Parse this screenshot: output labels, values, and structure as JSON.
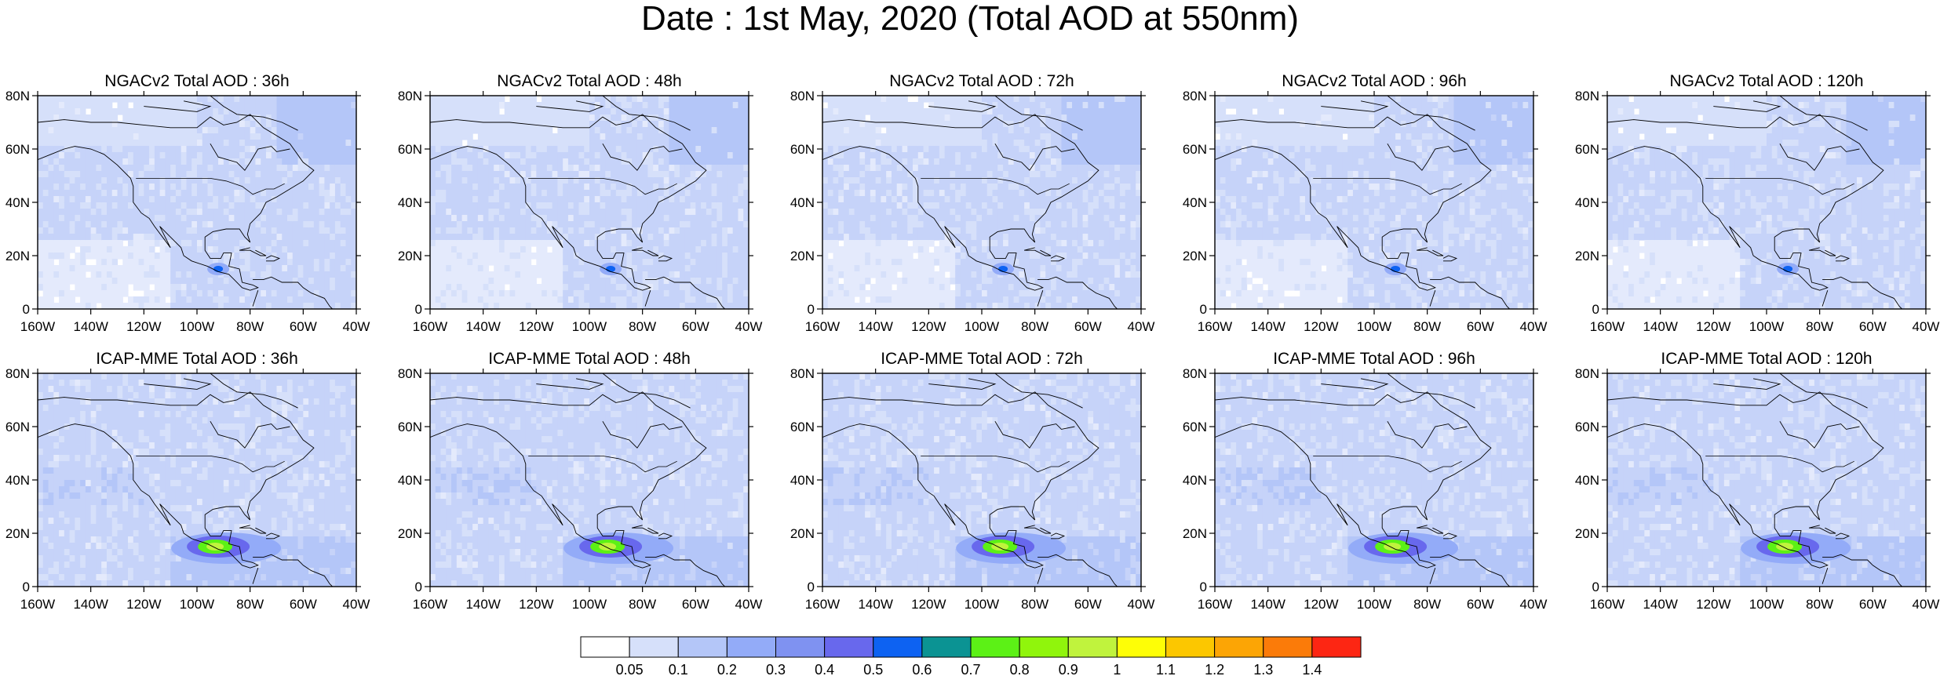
{
  "title": "Date : 1st May, 2020 (Total AOD at 550nm)",
  "lon_ticks": [
    "160W",
    "140W",
    "120W",
    "100W",
    "80W",
    "60W",
    "40W"
  ],
  "lat_ticks": [
    "80N",
    "60N",
    "40N",
    "20N",
    "0"
  ],
  "extent": {
    "lon_min": -160,
    "lon_max": -40,
    "lat_min": 0,
    "lat_max": 80
  },
  "panels": [
    {
      "title": "NGACv2 Total AOD : 36h",
      "model": "NGACv2",
      "hour": 36
    },
    {
      "title": "NGACv2 Total AOD : 48h",
      "model": "NGACv2",
      "hour": 48
    },
    {
      "title": "NGACv2 Total AOD : 72h",
      "model": "NGACv2",
      "hour": 72
    },
    {
      "title": "NGACv2 Total AOD : 96h",
      "model": "NGACv2",
      "hour": 96
    },
    {
      "title": "NGACv2 Total AOD : 120h",
      "model": "NGACv2",
      "hour": 120
    },
    {
      "title": "ICAP-MME Total AOD : 36h",
      "model": "ICAP-MME",
      "hour": 36
    },
    {
      "title": "ICAP-MME Total AOD : 48h",
      "model": "ICAP-MME",
      "hour": 48
    },
    {
      "title": "ICAP-MME Total AOD : 72h",
      "model": "ICAP-MME",
      "hour": 72
    },
    {
      "title": "ICAP-MME Total AOD : 96h",
      "model": "ICAP-MME",
      "hour": 96
    },
    {
      "title": "ICAP-MME Total AOD : 120h",
      "model": "ICAP-MME",
      "hour": 120
    }
  ],
  "colorbar": {
    "labels": [
      "0.05",
      "0.1",
      "0.2",
      "0.3",
      "0.4",
      "0.5",
      "0.6",
      "0.7",
      "0.8",
      "0.9",
      "1",
      "1.1",
      "1.2",
      "1.3",
      "1.4"
    ],
    "colors": [
      "#ffffff",
      "#d6e0fa",
      "#b4c6f8",
      "#93abf8",
      "#7f92f1",
      "#6868ed",
      "#0d62f2",
      "#0b9393",
      "#5cf116",
      "#90f50c",
      "#c0f33d",
      "#fefe06",
      "#fcc700",
      "#fca505",
      "#fb7b09",
      "#fd2613"
    ]
  }
}
